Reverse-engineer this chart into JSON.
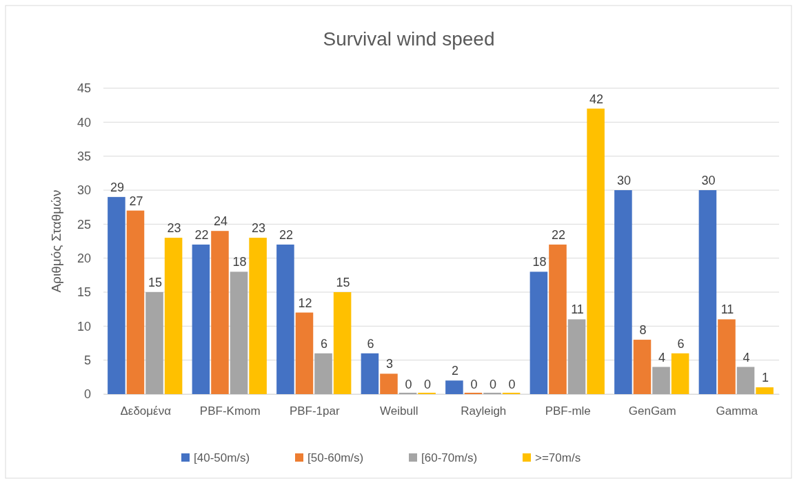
{
  "chart_data": {
    "type": "bar",
    "title": "Survival wind speed",
    "ylabel": "Αριθμός Σταθμών",
    "categories": [
      "Δεδομένα",
      "PBF-Kmom",
      "PBF-1par",
      "Weibull",
      "Rayleigh",
      "PBF-mle",
      "GenGam",
      "Gamma"
    ],
    "series": [
      {
        "name": "[40-50m/s)",
        "color": "#4472c4",
        "values": [
          29,
          22,
          22,
          6,
          2,
          18,
          30,
          30
        ]
      },
      {
        "name": "[50-60m/s)",
        "color": "#ed7d31",
        "values": [
          27,
          24,
          12,
          3,
          0,
          22,
          8,
          11
        ]
      },
      {
        "name": "[60-70m/s)",
        "color": "#a5a5a5",
        "values": [
          15,
          18,
          6,
          0,
          0,
          11,
          4,
          4
        ]
      },
      {
        "name": ">=70m/s",
        "color": "#ffc000",
        "values": [
          23,
          23,
          15,
          0,
          0,
          42,
          6,
          1
        ]
      }
    ],
    "ylim": [
      0,
      45
    ],
    "yticks": [
      0,
      5,
      10,
      15,
      20,
      25,
      30,
      35,
      40,
      45
    ],
    "grid": "y",
    "legend": "bottom",
    "data_labels": true
  }
}
